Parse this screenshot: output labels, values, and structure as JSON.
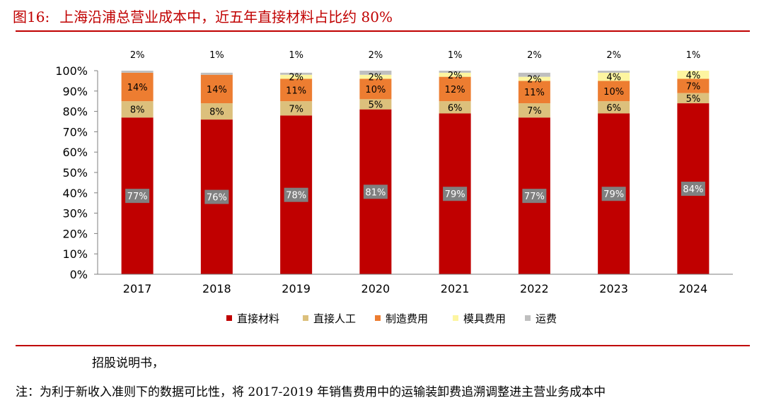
{
  "header": {
    "figure_number": "图16:",
    "title": "上海沿浦总营业成本中，近五年直接材料占比约 80%"
  },
  "chart_data": {
    "type": "bar",
    "stacked": true,
    "title": "上海沿浦总营业成本中，近五年直接材料占比约 80%",
    "categories": [
      "2017",
      "2018",
      "2019",
      "2020",
      "2021",
      "2022",
      "2023",
      "2024"
    ],
    "ylim": [
      0,
      100
    ],
    "yticks": [
      "0%",
      "10%",
      "20%",
      "30%",
      "40%",
      "50%",
      "60%",
      "70%",
      "80%",
      "90%",
      "100%"
    ],
    "series": [
      {
        "name": "直接材料",
        "color": "#c00000",
        "values": [
          77,
          76,
          78,
          81,
          79,
          77,
          79,
          84
        ],
        "labels": [
          "77%",
          "76%",
          "78%",
          "81%",
          "79%",
          "77%",
          "79%",
          "84%"
        ]
      },
      {
        "name": "直接人工",
        "color": "#dcc07c",
        "values": [
          8,
          8,
          7,
          5,
          6,
          7,
          6,
          5
        ],
        "labels": [
          "8%",
          "8%",
          "7%",
          "5%",
          "6%",
          "7%",
          "6%",
          "5%"
        ]
      },
      {
        "name": "制造费用",
        "color": "#ed7d31",
        "values": [
          14,
          14,
          11,
          10,
          12,
          11,
          10,
          7
        ],
        "labels": [
          "14%",
          "14%",
          "11%",
          "10%",
          "12%",
          "11%",
          "10%",
          "7%"
        ]
      },
      {
        "name": "模具费用",
        "color": "#fdf5a0",
        "values": [
          0,
          0,
          2,
          2,
          2,
          2,
          4,
          4
        ],
        "labels": [
          "",
          "",
          "2%",
          "2%",
          "2%",
          "2%",
          "4%",
          "4%"
        ]
      },
      {
        "name": "运费",
        "color": "#bfbfbf",
        "values": [
          2,
          1,
          1,
          2,
          1,
          2,
          2,
          1
        ],
        "labels": [
          "2%",
          "1%",
          "1%",
          "2%",
          "1%",
          "2%",
          "2%",
          "1%"
        ]
      }
    ],
    "legend_position": "bottom"
  },
  "footer": {
    "source": "招股说明书，",
    "note": "注：为利于新收入准则下的数据可比性，将 2017-2019 年销售费用中的运输装卸费追溯调整进主营业务成本中"
  }
}
